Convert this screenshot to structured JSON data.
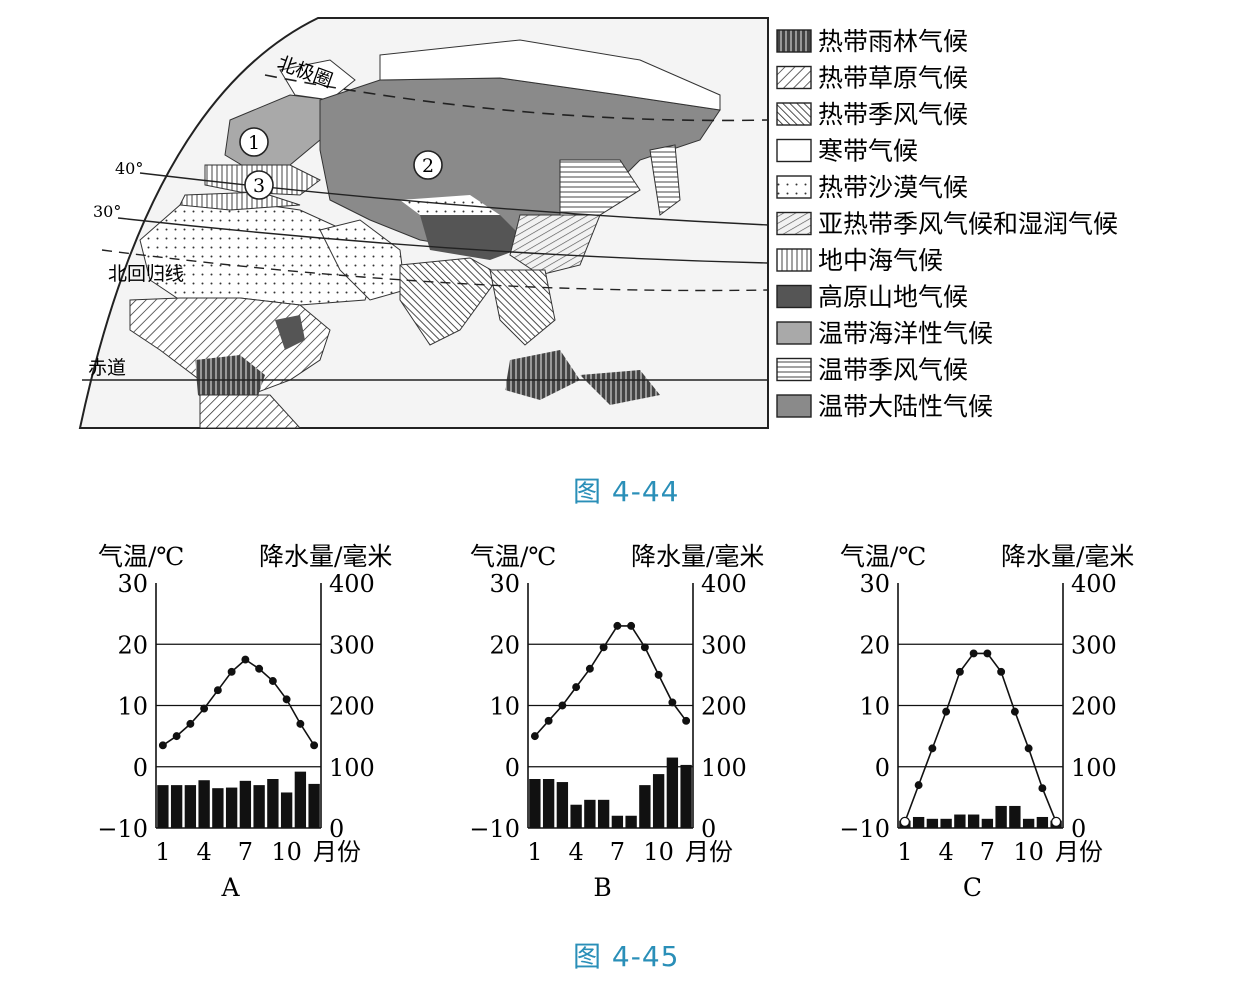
{
  "figure_44": {
    "caption": "图 4-44",
    "map_labels": {
      "arctic_circle": "北极圈",
      "lat_40": "40°",
      "lat_30": "30°",
      "tropic_cancer": "北回归线",
      "equator": "赤道",
      "marker_1": "1",
      "marker_2": "2",
      "marker_3": "3"
    },
    "legend": [
      {
        "label": "热带雨林气候",
        "pattern": "rainforest"
      },
      {
        "label": "热带草原气候",
        "pattern": "savanna"
      },
      {
        "label": "热带季风气候",
        "pattern": "tropmonsoon"
      },
      {
        "label": "寒带气候",
        "pattern": "polar"
      },
      {
        "label": "热带沙漠气候",
        "pattern": "desert"
      },
      {
        "label": "亚热带季风气候和湿润气候",
        "pattern": "subtrop"
      },
      {
        "label": "地中海气候",
        "pattern": "medit"
      },
      {
        "label": "高原山地气候",
        "pattern": "highland"
      },
      {
        "label": "温带海洋性气候",
        "pattern": "oceanic"
      },
      {
        "label": "温带季风气候",
        "pattern": "tempmonsoon"
      },
      {
        "label": "温带大陆性气候",
        "pattern": "continental"
      }
    ]
  },
  "figure_45": {
    "caption": "图 4-45"
  },
  "chart_data": [
    {
      "type": "bar+line",
      "name": "A",
      "y_left_label": "气温/℃",
      "y_right_label": "降水量/毫米",
      "x_unit_label": "月份",
      "x": [
        1,
        2,
        3,
        4,
        5,
        6,
        7,
        8,
        9,
        10,
        11,
        12
      ],
      "x_ticks": [
        "1",
        "4",
        "7",
        "10"
      ],
      "y_left_ticks": [
        "30",
        "20",
        "10",
        "0",
        "−10"
      ],
      "y_right_ticks": [
        "400",
        "300",
        "200",
        "100",
        "0"
      ],
      "y_left_range": [
        -10,
        30
      ],
      "y_right_range": [
        0,
        400
      ],
      "temperature": [
        3.5,
        5,
        7,
        9.5,
        12.5,
        15.5,
        17.5,
        16,
        14,
        11,
        7,
        3.5
      ],
      "precipitation": [
        70,
        70,
        70,
        78,
        65,
        66,
        77,
        70,
        80,
        58,
        92,
        72
      ]
    },
    {
      "type": "bar+line",
      "name": "B",
      "y_left_label": "气温/℃",
      "y_right_label": "降水量/毫米",
      "x_unit_label": "月份",
      "x": [
        1,
        2,
        3,
        4,
        5,
        6,
        7,
        8,
        9,
        10,
        11,
        12
      ],
      "x_ticks": [
        "1",
        "4",
        "7",
        "10"
      ],
      "y_left_ticks": [
        "30",
        "20",
        "10",
        "0",
        "−10"
      ],
      "y_right_ticks": [
        "400",
        "300",
        "200",
        "100",
        "0"
      ],
      "y_left_range": [
        -10,
        30
      ],
      "y_right_range": [
        0,
        400
      ],
      "temperature": [
        5,
        7.5,
        10,
        13,
        16,
        19.5,
        23,
        23,
        19.5,
        15,
        10.5,
        7.5
      ],
      "precipitation": [
        80,
        80,
        75,
        38,
        46,
        46,
        20,
        20,
        70,
        88,
        115,
        103
      ]
    },
    {
      "type": "bar+line",
      "name": "C",
      "y_left_label": "气温/℃",
      "y_right_label": "降水量/毫米",
      "x_unit_label": "月份",
      "x": [
        1,
        2,
        3,
        4,
        5,
        6,
        7,
        8,
        9,
        10,
        11,
        12
      ],
      "x_ticks": [
        "1",
        "4",
        "7",
        "10"
      ],
      "y_left_ticks": [
        "30",
        "20",
        "10",
        "0",
        "−10"
      ],
      "y_right_ticks": [
        "400",
        "300",
        "200",
        "100",
        "0"
      ],
      "y_left_range": [
        -10,
        30
      ],
      "y_right_range": [
        0,
        400
      ],
      "temperature": [
        -9,
        -3,
        3,
        9,
        15.5,
        18.5,
        18.5,
        15.5,
        9,
        3,
        -3.5,
        -9
      ],
      "precipitation": [
        12,
        18,
        15,
        15,
        22,
        22,
        15,
        36,
        36,
        15,
        18,
        12
      ]
    }
  ]
}
